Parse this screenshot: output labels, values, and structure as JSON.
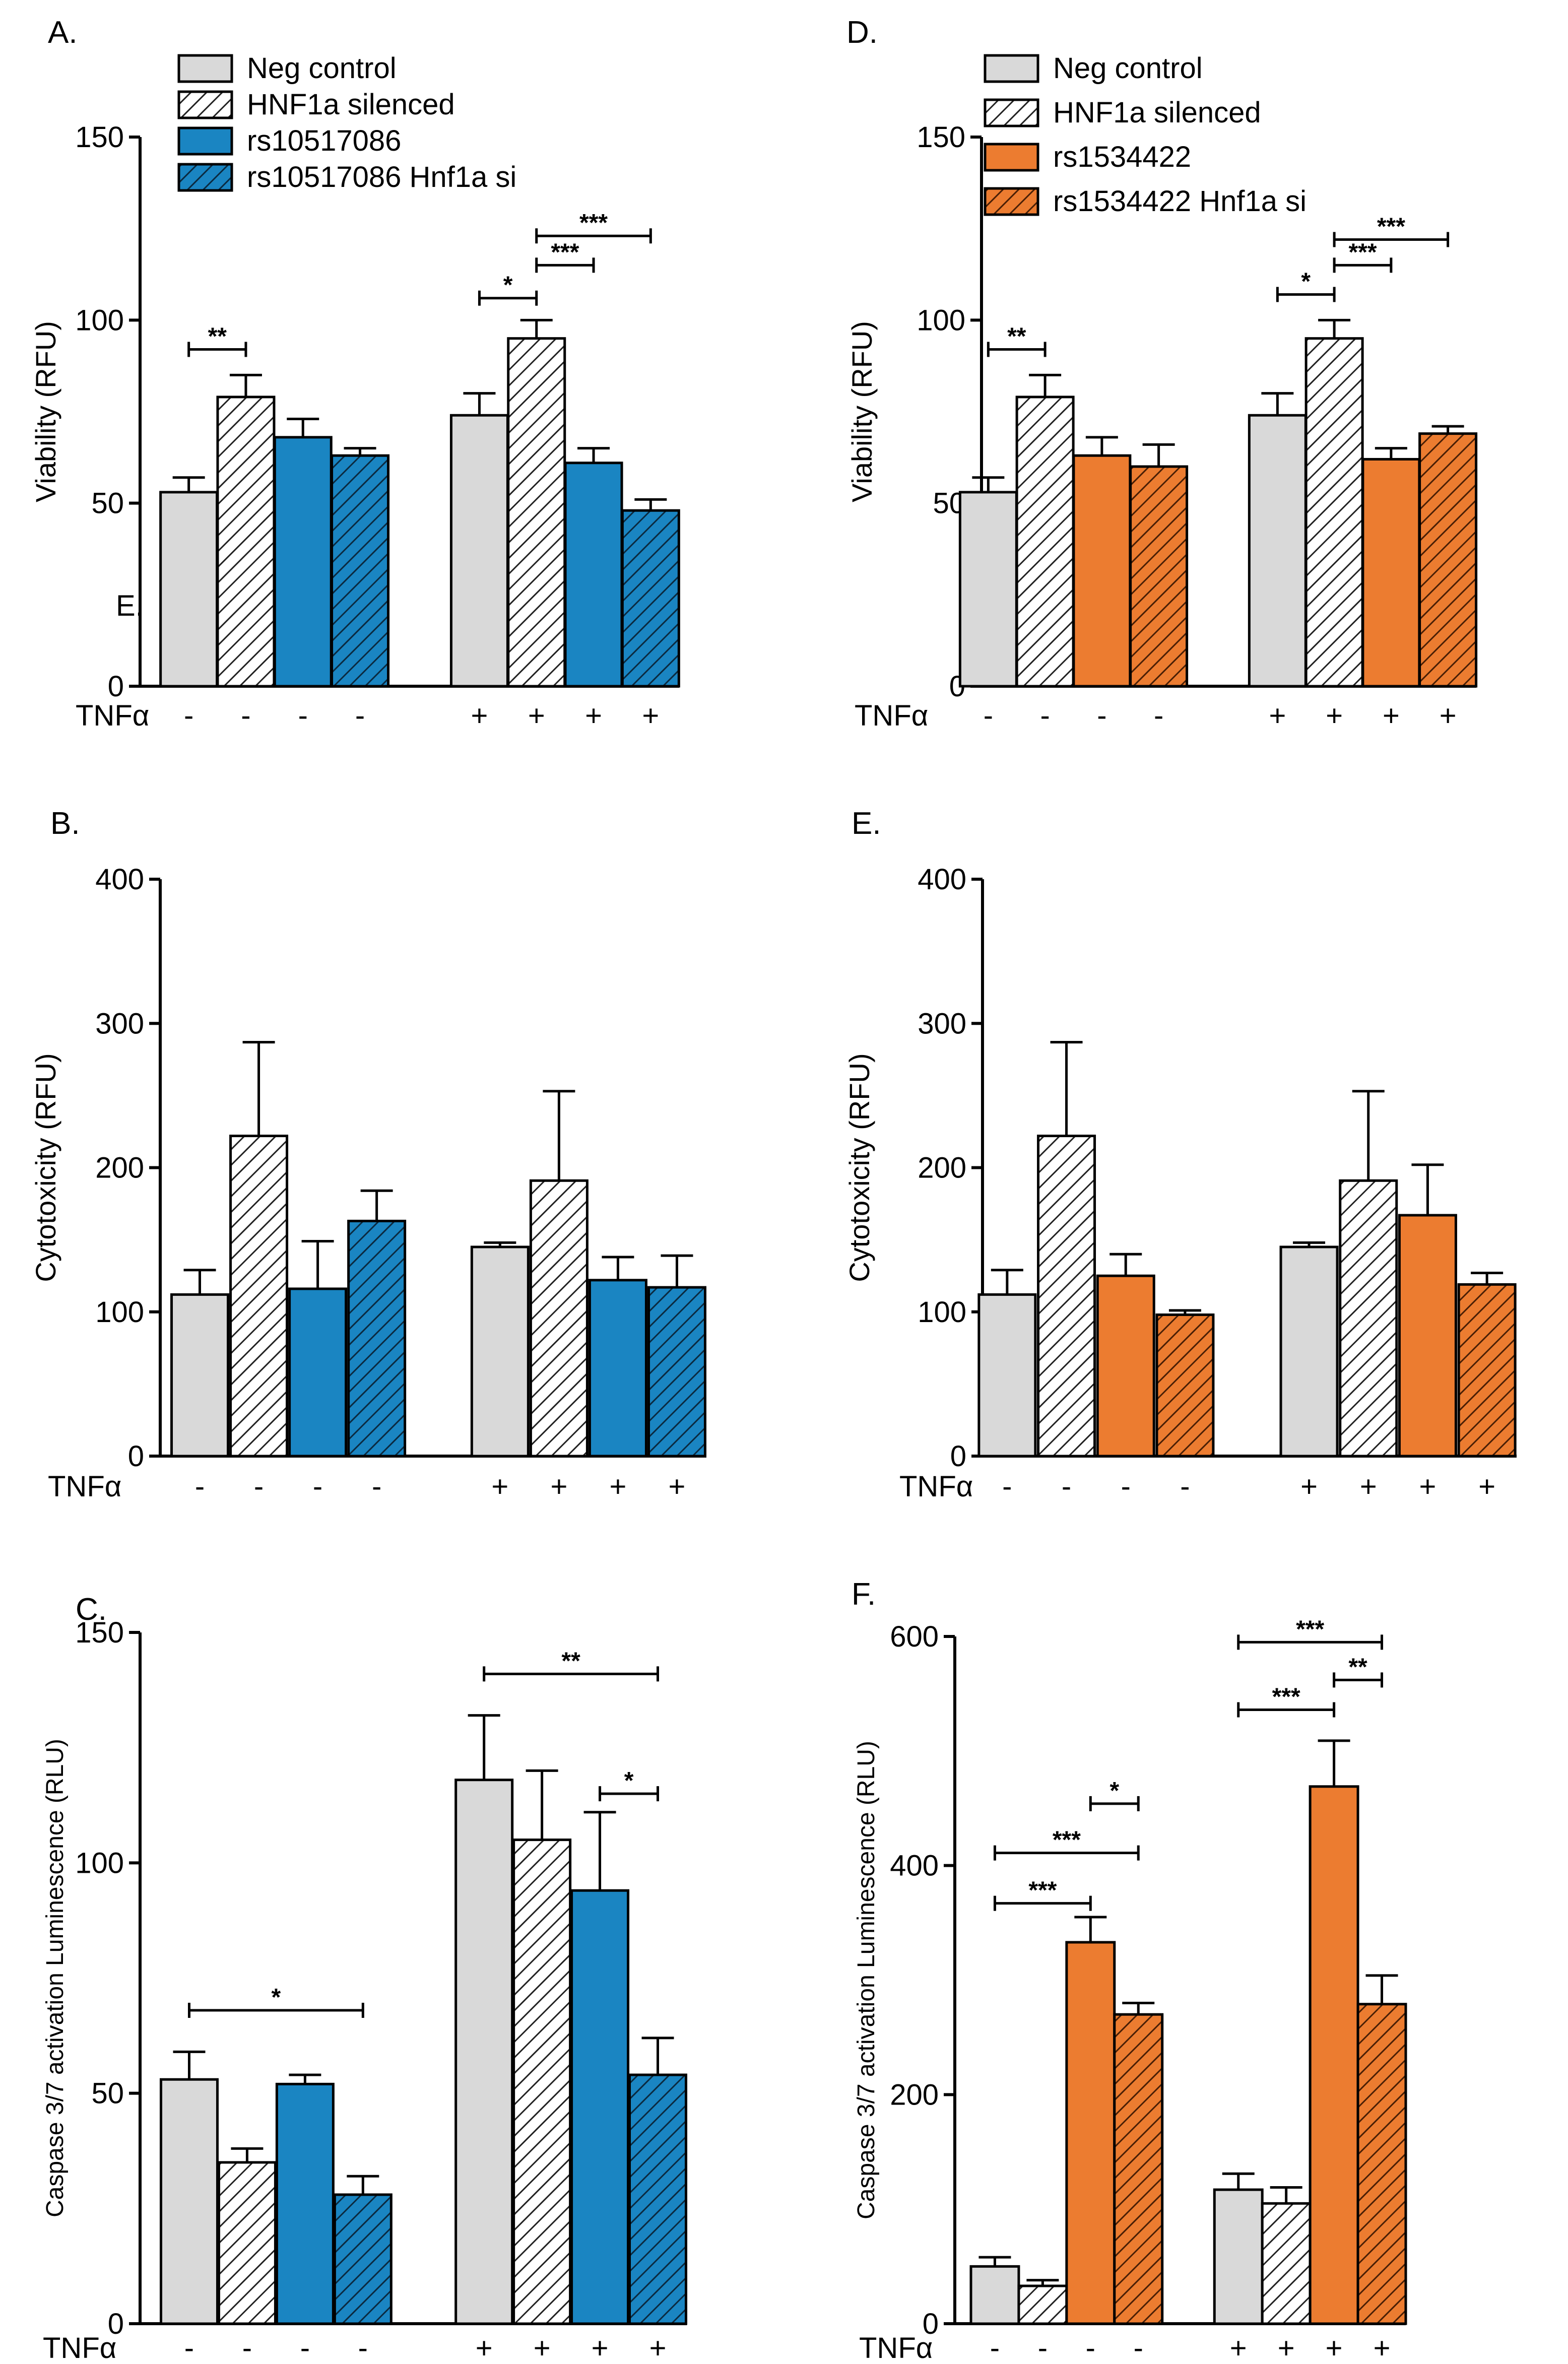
{
  "figure": {
    "legend_left": [
      {
        "label": "Neg control",
        "fill": "#d9d9d9",
        "hatch": false
      },
      {
        "label": "HNF1a silenced",
        "fill": "#ffffff",
        "hatch": true
      },
      {
        "label": "rs10517086",
        "fill": "#1a85c2",
        "hatch": false
      },
      {
        "label": "rs10517086 Hnf1a si",
        "fill": "#1a85c2",
        "hatch": true
      }
    ],
    "legend_right": [
      {
        "label": "Neg control",
        "fill": "#d9d9d9",
        "hatch": false
      },
      {
        "label": "HNF1a silenced",
        "fill": "#ffffff",
        "hatch": true
      },
      {
        "label": "rs1534422",
        "fill": "#ec7c30",
        "hatch": false
      },
      {
        "label": "rs1534422 Hnf1a si",
        "fill": "#ec7c30",
        "hatch": true
      }
    ],
    "stray_label": "E."
  },
  "chart_data": [
    {
      "panel": "A.",
      "type": "bar",
      "ylabel": "Viability (RFU)",
      "ylim": [
        0,
        150
      ],
      "yticks": [
        0,
        50,
        100,
        150
      ],
      "treatment_label": "TNFα",
      "treatment": [
        "-",
        "-",
        "-",
        "-",
        "+",
        "+",
        "+",
        "+"
      ],
      "values": [
        53,
        79,
        68,
        63,
        74,
        95,
        61,
        48
      ],
      "errors": [
        4,
        6,
        5,
        2,
        6,
        5,
        4,
        3
      ],
      "fills": [
        "#d9d9d9",
        "#ffffff",
        "#1a85c2",
        "#1a85c2",
        "#d9d9d9",
        "#ffffff",
        "#1a85c2",
        "#1a85c2"
      ],
      "hatch": [
        false,
        true,
        false,
        true,
        false,
        true,
        false,
        true
      ],
      "significance": [
        {
          "from": 0,
          "to": 1,
          "y": 92,
          "label": "**"
        },
        {
          "from": 4,
          "to": 5,
          "y": 106,
          "label": "*"
        },
        {
          "from": 5,
          "to": 6,
          "y": 115,
          "label": "***"
        },
        {
          "from": 5,
          "to": 7,
          "y": 123,
          "label": "***"
        }
      ]
    },
    {
      "panel": "D.",
      "type": "bar",
      "ylabel": "Viability (RFU)",
      "ylim": [
        0,
        150
      ],
      "yticks": [
        0,
        50,
        100,
        150
      ],
      "treatment_label": "TNFα",
      "treatment": [
        "-",
        "-",
        "-",
        "-",
        "+",
        "+",
        "+",
        "+"
      ],
      "values": [
        53,
        79,
        63,
        60,
        74,
        95,
        62,
        69
      ],
      "errors": [
        4,
        6,
        5,
        6,
        6,
        5,
        3,
        2
      ],
      "fills": [
        "#d9d9d9",
        "#ffffff",
        "#ec7c30",
        "#ec7c30",
        "#d9d9d9",
        "#ffffff",
        "#ec7c30",
        "#ec7c30"
      ],
      "hatch": [
        false,
        true,
        false,
        true,
        false,
        true,
        false,
        true
      ],
      "significance": [
        {
          "from": 0,
          "to": 1,
          "y": 92,
          "label": "**"
        },
        {
          "from": 4,
          "to": 5,
          "y": 107,
          "label": "*"
        },
        {
          "from": 5,
          "to": 6,
          "y": 115,
          "label": "***"
        },
        {
          "from": 5,
          "to": 7,
          "y": 122,
          "label": "***"
        }
      ]
    },
    {
      "panel": "B.",
      "type": "bar",
      "ylabel": "Cytotoxicity (RFU)",
      "ylim": [
        0,
        400
      ],
      "yticks": [
        0,
        100,
        200,
        300,
        400
      ],
      "treatment_label": "TNFα",
      "treatment": [
        "-",
        "-",
        "-",
        "-",
        "+",
        "+",
        "+",
        "+"
      ],
      "values": [
        112,
        222,
        116,
        163,
        145,
        191,
        122,
        117
      ],
      "errors": [
        17,
        65,
        33,
        21,
        3,
        62,
        16,
        22
      ],
      "fills": [
        "#d9d9d9",
        "#ffffff",
        "#1a85c2",
        "#1a85c2",
        "#d9d9d9",
        "#ffffff",
        "#1a85c2",
        "#1a85c2"
      ],
      "hatch": [
        false,
        true,
        false,
        true,
        false,
        true,
        false,
        true
      ],
      "significance": []
    },
    {
      "panel": "E.",
      "type": "bar",
      "ylabel": "Cytotoxicity (RFU)",
      "ylim": [
        0,
        400
      ],
      "yticks": [
        0,
        100,
        200,
        300,
        400
      ],
      "treatment_label": "TNFα",
      "treatment": [
        "-",
        "-",
        "-",
        "-",
        "+",
        "+",
        "+",
        "+"
      ],
      "values": [
        112,
        222,
        125,
        98,
        145,
        191,
        167,
        119
      ],
      "errors": [
        17,
        65,
        15,
        3,
        3,
        62,
        35,
        8
      ],
      "fills": [
        "#d9d9d9",
        "#ffffff",
        "#ec7c30",
        "#ec7c30",
        "#d9d9d9",
        "#ffffff",
        "#ec7c30",
        "#ec7c30"
      ],
      "hatch": [
        false,
        true,
        false,
        true,
        false,
        true,
        false,
        true
      ],
      "significance": []
    },
    {
      "panel": "C.",
      "type": "bar",
      "ylabel": "Caspase 3/7 activation  Luminescence (RLU)",
      "ylim": [
        0,
        150
      ],
      "yticks": [
        0,
        50,
        100,
        150
      ],
      "treatment_label": "TNFα",
      "treatment": [
        "-",
        "-",
        "-",
        "-",
        "+",
        "+",
        "+",
        "+"
      ],
      "values": [
        53,
        35,
        52,
        28,
        118,
        105,
        94,
        54
      ],
      "errors": [
        6,
        3,
        2,
        4,
        14,
        15,
        17,
        8
      ],
      "fills": [
        "#d9d9d9",
        "#ffffff",
        "#1a85c2",
        "#1a85c2",
        "#d9d9d9",
        "#ffffff",
        "#1a85c2",
        "#1a85c2"
      ],
      "hatch": [
        false,
        true,
        false,
        true,
        false,
        true,
        false,
        true
      ],
      "significance": [
        {
          "from": 0,
          "to": 3,
          "y": 68,
          "label": "*"
        },
        {
          "from": 4,
          "to": 7,
          "y": 141,
          "label": "**"
        },
        {
          "from": 6,
          "to": 7,
          "y": 115,
          "label": "*"
        }
      ]
    },
    {
      "panel": "F.",
      "type": "bar",
      "ylabel": "Caspase 3/7 activation  Luminescence (RLU)",
      "ylim": [
        0,
        600
      ],
      "yticks": [
        0,
        200,
        400,
        600
      ],
      "treatment_label": "TNFα",
      "treatment": [
        "-",
        "-",
        "-",
        "-",
        "+",
        "+",
        "+",
        "+"
      ],
      "values": [
        50,
        33,
        333,
        270,
        117,
        105,
        469,
        279
      ],
      "errors": [
        8,
        5,
        22,
        10,
        14,
        14,
        40,
        25
      ],
      "fills": [
        "#d9d9d9",
        "#ffffff",
        "#ec7c30",
        "#ec7c30",
        "#d9d9d9",
        "#ffffff",
        "#ec7c30",
        "#ec7c30"
      ],
      "hatch": [
        false,
        true,
        false,
        true,
        false,
        true,
        false,
        true
      ],
      "significance": [
        {
          "from": 0,
          "to": 2,
          "y": 367,
          "label": "***"
        },
        {
          "from": 0,
          "to": 3,
          "y": 411,
          "label": "***"
        },
        {
          "from": 2,
          "to": 3,
          "y": 454,
          "label": "*"
        },
        {
          "from": 4,
          "to": 6,
          "y": 536,
          "label": "***"
        },
        {
          "from": 6,
          "to": 7,
          "y": 562,
          "label": "**"
        },
        {
          "from": 4,
          "to": 7,
          "y": 595,
          "label": "***"
        }
      ]
    }
  ]
}
